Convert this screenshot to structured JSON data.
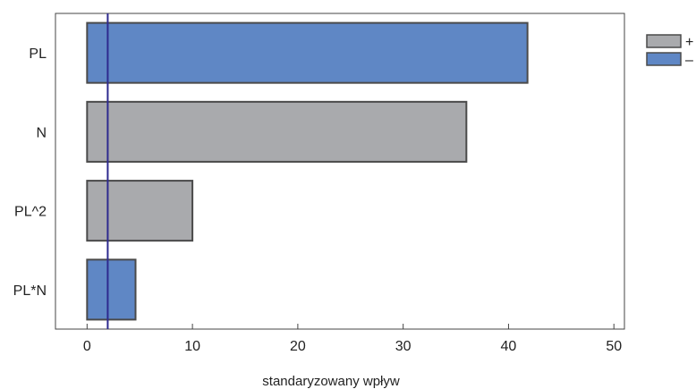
{
  "chart_data": {
    "type": "bar",
    "orientation": "horizontal",
    "title": "",
    "xlabel": "standaryzowany wpływ",
    "ylabel": "",
    "categories": [
      "PL",
      "N",
      "PL^2",
      "PL*N"
    ],
    "values": [
      41.8,
      36.0,
      10.0,
      4.6
    ],
    "signs": [
      "-",
      "+",
      "+",
      "-"
    ],
    "reference_line": 1.96,
    "xlim": [
      -3,
      51
    ],
    "xticks": [
      0,
      10,
      20,
      30,
      40,
      50
    ],
    "grid": false,
    "legend": {
      "placement": "top-right",
      "entries": [
        {
          "label": "+",
          "color": "#a9aaad"
        },
        {
          "label": "–",
          "color": "#5f87c5"
        }
      ]
    },
    "colors": {
      "positive": "#a9aaad",
      "negative": "#5f87c5",
      "bar_border": "#4a4a4a",
      "reference_line": "#2e2a8f",
      "frame": "#444444"
    }
  }
}
